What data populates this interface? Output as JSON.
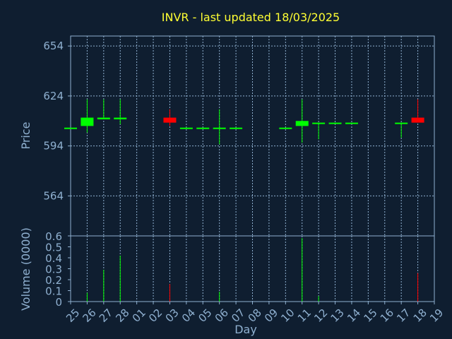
{
  "chart_data": {
    "type": "candlestick",
    "title": "INVR - last updated 18/03/2025",
    "xlabel": "Day",
    "ylabel_price": "Price",
    "ylabel_volume": "Volume (0000)",
    "x_ticks": [
      "25",
      "26",
      "27",
      "28",
      "01",
      "02",
      "03",
      "04",
      "05",
      "06",
      "07",
      "08",
      "09",
      "10",
      "11",
      "12",
      "13",
      "14",
      "15",
      "16",
      "17",
      "18",
      "19"
    ],
    "price_ylim": [
      540,
      660
    ],
    "price_ticks": [
      564,
      594,
      624,
      654
    ],
    "volume_ylim": [
      0,
      0.6
    ],
    "volume_ticks": [
      0,
      0.1,
      0.2,
      0.3,
      0.4,
      0.5,
      0.6
    ],
    "up_color": "#00ff00",
    "down_color": "#ff0000",
    "candles": [
      {
        "day": "25",
        "open": 605,
        "high": 605,
        "low": 605,
        "close": 605,
        "volume": 0
      },
      {
        "day": "26",
        "open": 606,
        "high": 622,
        "low": 602,
        "close": 611,
        "volume": 0.08
      },
      {
        "day": "27",
        "open": 610,
        "high": 622,
        "low": 610,
        "close": 611,
        "volume": 0.29
      },
      {
        "day": "28",
        "open": 610,
        "high": 622,
        "low": 607,
        "close": 611,
        "volume": 0.42
      },
      {
        "day": "03",
        "open": 611,
        "high": 616,
        "low": 606,
        "close": 608,
        "volume": 0.16
      },
      {
        "day": "04",
        "open": 605,
        "high": 605,
        "low": 605,
        "close": 605,
        "volume": 0
      },
      {
        "day": "05",
        "open": 605,
        "high": 605,
        "low": 605,
        "close": 605,
        "volume": 0
      },
      {
        "day": "06",
        "open": 605,
        "high": 616,
        "low": 595,
        "close": 605,
        "volume": 0.09
      },
      {
        "day": "07",
        "open": 605,
        "high": 605,
        "low": 605,
        "close": 605,
        "volume": 0
      },
      {
        "day": "10",
        "open": 605,
        "high": 605,
        "low": 605,
        "close": 605,
        "volume": 0
      },
      {
        "day": "11",
        "open": 606,
        "high": 622,
        "low": 596,
        "close": 609,
        "volume": 0.58
      },
      {
        "day": "12",
        "open": 608,
        "high": 608,
        "low": 598,
        "close": 608,
        "volume": 0.05
      },
      {
        "day": "13",
        "open": 608,
        "high": 608,
        "low": 608,
        "close": 608,
        "volume": 0
      },
      {
        "day": "14",
        "open": 608,
        "high": 608,
        "low": 608,
        "close": 608,
        "volume": 0
      },
      {
        "day": "17",
        "open": 608,
        "high": 608,
        "low": 599,
        "close": 608,
        "volume": 0
      },
      {
        "day": "18",
        "open": 611,
        "high": 622,
        "low": 608,
        "close": 608,
        "volume": 0.26
      }
    ]
  }
}
